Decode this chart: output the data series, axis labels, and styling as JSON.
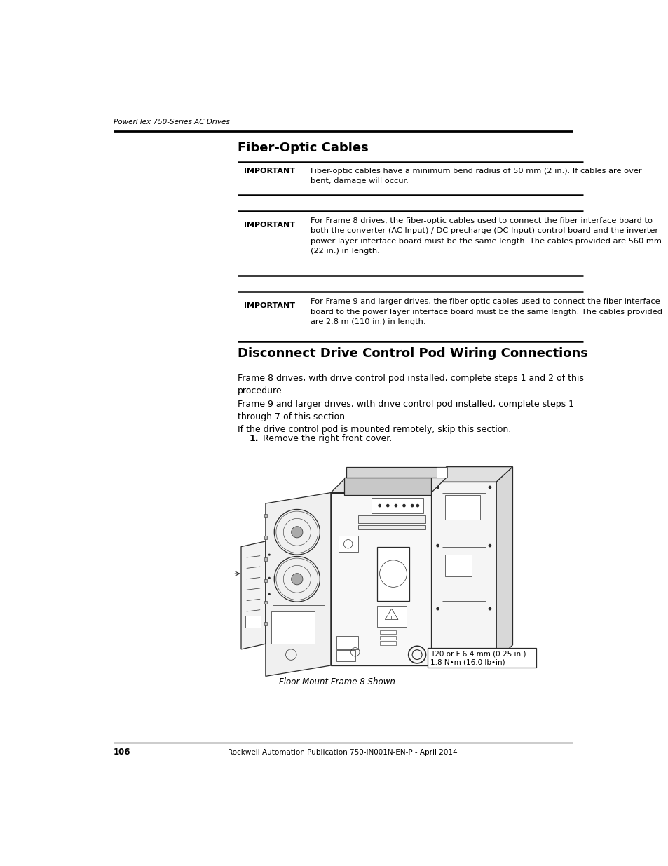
{
  "page_header_left": "PowerFlex 750-Series AC Drives",
  "page_number": "106",
  "footer_center": "Rockwell Automation Publication 750-IN001N-EN-P - April 2014",
  "section1_title": "Fiber-Optic Cables",
  "important_label": "IMPORTANT",
  "imp1_text": "Fiber-optic cables have a minimum bend radius of 50 mm (2 in.). If cables are over\nbent, damage will occur.",
  "imp2_text": "For Frame 8 drives, the fiber-optic cables used to connect the fiber interface board to\nboth the converter (AC Input) / DC precharge (DC Input) control board and the inverter\npower layer interface board must be the same length. The cables provided are 560 mm\n(22 in.) in length.",
  "imp3_text": "For Frame 9 and larger drives, the fiber-optic cables used to connect the fiber interface\nboard to the power layer interface board must be the same length. The cables provided\nare 2.8 m (110 in.) in length.",
  "section2_title": "Disconnect Drive Control Pod Wiring Connections",
  "para1": "Frame 8 drives, with drive control pod installed, complete steps 1 and 2 of this\nprocedure.",
  "para2": "Frame 9 and larger drives, with drive control pod installed, complete steps 1\nthrough 7 of this section.",
  "para3": "If the drive control pod is mounted remotely, skip this section.",
  "step1_num": "1.",
  "step1_text": "Remove the right front cover.",
  "caption": "Floor Mount Frame 8 Shown",
  "torque_line1": "T20 or F 6.4 mm (0.25 in.)",
  "torque_line2": "1.8 N•m (16.0 lb•in)",
  "bg_color": "#ffffff",
  "text_color": "#000000",
  "line_color": "#000000",
  "draw_color": "#333333"
}
